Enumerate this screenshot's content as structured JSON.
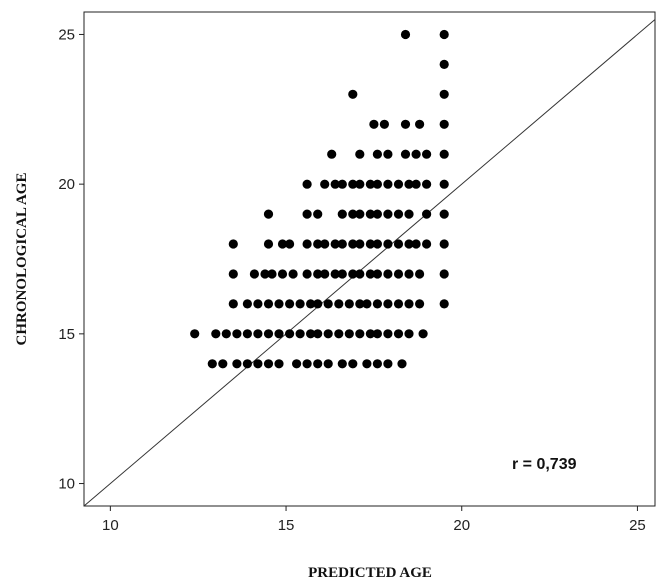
{
  "chart_data": {
    "type": "scatter",
    "xlabel": "PREDICTED AGE",
    "ylabel": "CHRONOLOGICAL AGE",
    "xlim": [
      9.25,
      25.5
    ],
    "ylim": [
      9.25,
      25.75
    ],
    "xticks": [
      "10",
      "15",
      "20",
      "25"
    ],
    "yticks": [
      "10",
      "15",
      "20",
      "25"
    ],
    "grid": false,
    "reference_line": {
      "type": "identity",
      "from": [
        9.25,
        9.25
      ],
      "to": [
        25.5,
        25.5
      ]
    },
    "annotation": "r = 0,739",
    "marker_color": "#000000",
    "points": [
      [
        18.4,
        25
      ],
      [
        19.5,
        25
      ],
      [
        19.5,
        24
      ],
      [
        16.9,
        23
      ],
      [
        19.5,
        23
      ],
      [
        17.5,
        22
      ],
      [
        17.8,
        22
      ],
      [
        18.4,
        22
      ],
      [
        18.8,
        22
      ],
      [
        19.5,
        22
      ],
      [
        16.3,
        21
      ],
      [
        17.1,
        21
      ],
      [
        17.6,
        21
      ],
      [
        17.9,
        21
      ],
      [
        18.4,
        21
      ],
      [
        18.7,
        21
      ],
      [
        19.0,
        21
      ],
      [
        19.5,
        21
      ],
      [
        15.6,
        20
      ],
      [
        16.1,
        20
      ],
      [
        16.4,
        20
      ],
      [
        16.6,
        20
      ],
      [
        16.9,
        20
      ],
      [
        17.1,
        20
      ],
      [
        17.4,
        20
      ],
      [
        17.6,
        20
      ],
      [
        17.9,
        20
      ],
      [
        18.2,
        20
      ],
      [
        18.5,
        20
      ],
      [
        18.7,
        20
      ],
      [
        19.0,
        20
      ],
      [
        19.5,
        20
      ],
      [
        14.5,
        19
      ],
      [
        15.6,
        19
      ],
      [
        15.9,
        19
      ],
      [
        16.6,
        19
      ],
      [
        16.9,
        19
      ],
      [
        17.1,
        19
      ],
      [
        17.4,
        19
      ],
      [
        17.6,
        19
      ],
      [
        17.9,
        19
      ],
      [
        18.2,
        19
      ],
      [
        18.5,
        19
      ],
      [
        19.0,
        19
      ],
      [
        19.5,
        19
      ],
      [
        13.5,
        18
      ],
      [
        14.5,
        18
      ],
      [
        14.9,
        18
      ],
      [
        15.1,
        18
      ],
      [
        15.6,
        18
      ],
      [
        15.9,
        18
      ],
      [
        16.1,
        18
      ],
      [
        16.4,
        18
      ],
      [
        16.6,
        18
      ],
      [
        16.9,
        18
      ],
      [
        17.1,
        18
      ],
      [
        17.4,
        18
      ],
      [
        17.6,
        18
      ],
      [
        17.9,
        18
      ],
      [
        18.2,
        18
      ],
      [
        18.5,
        18
      ],
      [
        18.7,
        18
      ],
      [
        19.0,
        18
      ],
      [
        19.5,
        18
      ],
      [
        13.5,
        17
      ],
      [
        14.1,
        17
      ],
      [
        14.4,
        17
      ],
      [
        14.6,
        17
      ],
      [
        14.9,
        17
      ],
      [
        15.2,
        17
      ],
      [
        15.6,
        17
      ],
      [
        15.9,
        17
      ],
      [
        16.1,
        17
      ],
      [
        16.4,
        17
      ],
      [
        16.6,
        17
      ],
      [
        16.9,
        17
      ],
      [
        17.1,
        17
      ],
      [
        17.4,
        17
      ],
      [
        17.6,
        17
      ],
      [
        17.9,
        17
      ],
      [
        18.2,
        17
      ],
      [
        18.5,
        17
      ],
      [
        18.8,
        17
      ],
      [
        19.5,
        17
      ],
      [
        13.5,
        16
      ],
      [
        13.9,
        16
      ],
      [
        14.2,
        16
      ],
      [
        14.5,
        16
      ],
      [
        14.8,
        16
      ],
      [
        15.1,
        16
      ],
      [
        15.4,
        16
      ],
      [
        15.7,
        16
      ],
      [
        15.9,
        16
      ],
      [
        16.2,
        16
      ],
      [
        16.5,
        16
      ],
      [
        16.8,
        16
      ],
      [
        17.1,
        16
      ],
      [
        17.3,
        16
      ],
      [
        17.6,
        16
      ],
      [
        17.9,
        16
      ],
      [
        18.2,
        16
      ],
      [
        18.5,
        16
      ],
      [
        18.8,
        16
      ],
      [
        19.5,
        16
      ],
      [
        12.4,
        15
      ],
      [
        13.0,
        15
      ],
      [
        13.3,
        15
      ],
      [
        13.6,
        15
      ],
      [
        13.9,
        15
      ],
      [
        14.2,
        15
      ],
      [
        14.5,
        15
      ],
      [
        14.8,
        15
      ],
      [
        15.1,
        15
      ],
      [
        15.4,
        15
      ],
      [
        15.7,
        15
      ],
      [
        15.9,
        15
      ],
      [
        16.2,
        15
      ],
      [
        16.5,
        15
      ],
      [
        16.8,
        15
      ],
      [
        17.1,
        15
      ],
      [
        17.4,
        15
      ],
      [
        17.6,
        15
      ],
      [
        17.9,
        15
      ],
      [
        18.2,
        15
      ],
      [
        18.5,
        15
      ],
      [
        18.9,
        15
      ],
      [
        12.9,
        14
      ],
      [
        13.2,
        14
      ],
      [
        13.6,
        14
      ],
      [
        13.9,
        14
      ],
      [
        14.2,
        14
      ],
      [
        14.5,
        14
      ],
      [
        14.8,
        14
      ],
      [
        15.3,
        14
      ],
      [
        15.6,
        14
      ],
      [
        15.9,
        14
      ],
      [
        16.2,
        14
      ],
      [
        16.6,
        14
      ],
      [
        16.9,
        14
      ],
      [
        17.3,
        14
      ],
      [
        17.6,
        14
      ],
      [
        17.9,
        14
      ],
      [
        18.3,
        14
      ]
    ]
  }
}
